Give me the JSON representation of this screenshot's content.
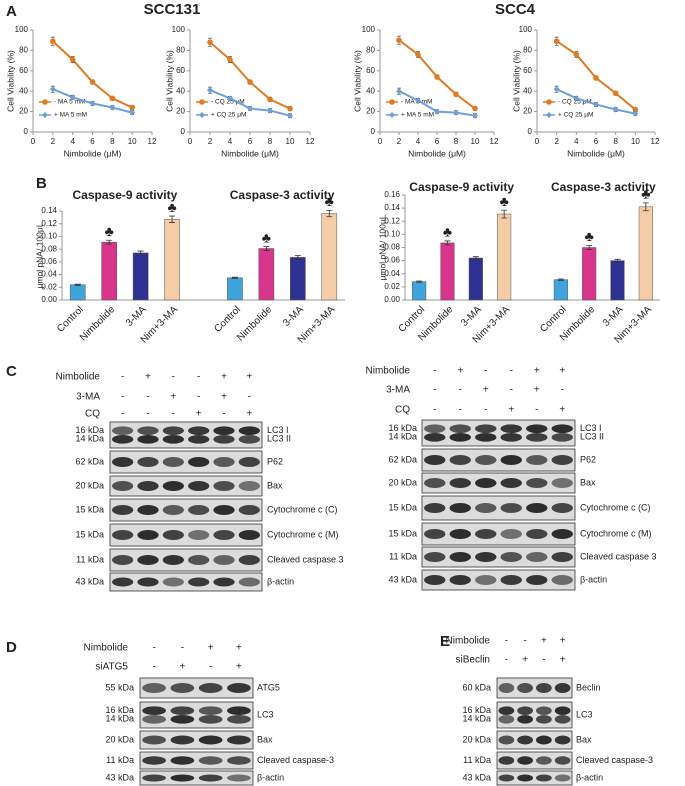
{
  "panel_labels": [
    "A",
    "B",
    "C",
    "D",
    "E"
  ],
  "cell_lines": [
    "SCC131",
    "SCC4"
  ],
  "chart_data": [
    {
      "type": "line",
      "ylabel": "Cell Viability (%)",
      "xlabel": "Nimbolide (μM)",
      "x": [
        2,
        4,
        6,
        8,
        10
      ],
      "xlim": [
        0,
        12
      ],
      "xticks": [
        0,
        2,
        4,
        6,
        8,
        10,
        12
      ],
      "ylim": [
        0,
        100
      ],
      "yticks": [
        0,
        20,
        40,
        60,
        80,
        100
      ],
      "legend": "lower left",
      "series": [
        {
          "name": "- MA 5 mM",
          "color": "#e07b22",
          "values": [
            89,
            71,
            49,
            33,
            24
          ],
          "errors": [
            4,
            3,
            2,
            2,
            2
          ]
        },
        {
          "name": "+ MA 5 mM",
          "color": "#6f9fd8",
          "values": [
            42,
            34,
            28,
            24,
            19
          ],
          "errors": [
            3,
            2,
            2,
            2,
            2
          ]
        }
      ]
    },
    {
      "type": "line",
      "ylabel": "Cell Viability (%)",
      "xlabel": "Nimbolide (μM)",
      "x": [
        2,
        4,
        6,
        8,
        10
      ],
      "xlim": [
        0,
        12
      ],
      "xticks": [
        0,
        2,
        4,
        6,
        8,
        10,
        12
      ],
      "ylim": [
        0,
        100
      ],
      "yticks": [
        0,
        20,
        40,
        60,
        80,
        100
      ],
      "legend": "lower left",
      "series": [
        {
          "name": "- CQ 25 μM",
          "color": "#e07b22",
          "values": [
            88,
            71,
            49,
            32,
            23
          ],
          "errors": [
            4,
            3,
            2,
            2,
            2
          ]
        },
        {
          "name": "+ CQ 25 μM",
          "color": "#6f9fd8",
          "values": [
            41,
            33,
            23,
            21,
            16
          ],
          "errors": [
            3,
            2,
            2,
            2,
            2
          ]
        }
      ]
    },
    {
      "type": "line",
      "ylabel": "Cell Viability (%)",
      "xlabel": "Nimbolide (μM)",
      "x": [
        2,
        4,
        6,
        8,
        10
      ],
      "xlim": [
        0,
        12
      ],
      "xticks": [
        0,
        2,
        4,
        6,
        8,
        10,
        12
      ],
      "ylim": [
        0,
        100
      ],
      "yticks": [
        0,
        20,
        40,
        60,
        80,
        100
      ],
      "legend": "lower left",
      "series": [
        {
          "name": "- MA 5 mM",
          "color": "#e07b22",
          "values": [
            90,
            76,
            54,
            37,
            23
          ],
          "errors": [
            4,
            3,
            2,
            2,
            2
          ]
        },
        {
          "name": "+ MA 5 mM",
          "color": "#6f9fd8",
          "values": [
            40,
            31,
            20,
            19,
            16
          ],
          "errors": [
            3,
            2,
            2,
            2,
            2
          ]
        }
      ]
    },
    {
      "type": "line",
      "ylabel": "Cell Viability (%)",
      "xlabel": "Nimbolide (μM)",
      "x": [
        2,
        4,
        6,
        8,
        10
      ],
      "xlim": [
        0,
        12
      ],
      "xticks": [
        0,
        2,
        4,
        6,
        8,
        10,
        12
      ],
      "ylim": [
        0,
        100
      ],
      "yticks": [
        0,
        20,
        40,
        60,
        80,
        100
      ],
      "legend": "lower left",
      "series": [
        {
          "name": "- CQ 25 μM",
          "color": "#e07b22",
          "values": [
            89,
            76,
            53,
            38,
            22
          ],
          "errors": [
            4,
            3,
            2,
            2,
            2
          ]
        },
        {
          "name": "+ CQ 25 μM",
          "color": "#6f9fd8",
          "values": [
            42,
            33,
            27,
            22,
            18
          ],
          "errors": [
            3,
            2,
            2,
            2,
            2
          ]
        }
      ]
    },
    {
      "type": "bar",
      "ylabel": "μmol pNA/ 100μL",
      "ylim": [
        0,
        0.14
      ],
      "yticks": [
        {
          "value": 0,
          "label": "0.00"
        },
        {
          "value": 0.02,
          "label": "0.02"
        },
        {
          "value": 0.04,
          "label": "0.04"
        },
        {
          "value": 0.06,
          "label": "0.06"
        },
        {
          "value": 0.08,
          "label": "0.08"
        },
        {
          "value": 0.1,
          "label": "0.10"
        },
        {
          "value": 0.12,
          "label": "0.12"
        },
        {
          "value": 0.14,
          "label": "0.14"
        }
      ],
      "colors": [
        "#3fa3dc",
        "#d8358c",
        "#2e3192",
        "#f4cda6"
      ],
      "groups": [
        {
          "title": "Caspase-9 activity",
          "categories": [
            "Control",
            "Nimbolide",
            "3-MA",
            "Nim+3-MA"
          ],
          "values": [
            0.024,
            0.091,
            0.074,
            0.127
          ],
          "errors": [
            0.001,
            0.003,
            0.003,
            0.005
          ],
          "annotations": [
            null,
            "♣",
            null,
            "♣"
          ]
        },
        {
          "title": "Caspase-3 activity",
          "categories": [
            "Control",
            "Nimbolide",
            "3-MA",
            "Nim+3-MA"
          ],
          "values": [
            0.035,
            0.081,
            0.067,
            0.136
          ],
          "errors": [
            0.001,
            0.003,
            0.003,
            0.005
          ],
          "annotations": [
            null,
            "♣",
            null,
            "♣"
          ]
        }
      ]
    },
    {
      "type": "bar",
      "ylabel": "μmol pNA/ 100μL",
      "ylim": [
        0,
        0.16
      ],
      "yticks": [
        {
          "value": 0,
          "label": "0.00"
        },
        {
          "value": 0.02,
          "label": "0.02"
        },
        {
          "value": 0.04,
          "label": "0.04"
        },
        {
          "value": 0.06,
          "label": "0.06"
        },
        {
          "value": 0.08,
          "label": "0.08"
        },
        {
          "value": 0.1,
          "label": "0.10"
        },
        {
          "value": 0.12,
          "label": "0.12"
        },
        {
          "value": 0.14,
          "label": "0.14"
        },
        {
          "value": 0.16,
          "label": "0.16"
        }
      ],
      "colors": [
        "#3fa3dc",
        "#d8358c",
        "#2e3192",
        "#f4cda6"
      ],
      "groups": [
        {
          "title": "Caspase-9 activity",
          "categories": [
            "Control",
            "Nimbolide",
            "3-MA",
            "Nim+3-MA"
          ],
          "values": [
            0.028,
            0.087,
            0.064,
            0.131
          ],
          "errors": [
            0.001,
            0.003,
            0.002,
            0.006
          ],
          "annotations": [
            null,
            "♣",
            null,
            "♣"
          ]
        },
        {
          "title": "Caspase-3 activity",
          "categories": [
            "Control",
            "Nimbolide",
            "3-MA",
            "Nim+3-MA"
          ],
          "values": [
            0.031,
            0.08,
            0.06,
            0.142
          ],
          "errors": [
            0.001,
            0.003,
            0.002,
            0.006
          ],
          "annotations": [
            null,
            "♣",
            null,
            "♣"
          ]
        }
      ]
    }
  ],
  "blots": [
    {
      "treatments": [
        {
          "name": "Nimbolide",
          "signs": [
            "-",
            "+",
            "-",
            "-",
            "+",
            "+"
          ]
        },
        {
          "name": "3-MA",
          "signs": [
            "-",
            "-",
            "+",
            "-",
            "+",
            "-"
          ]
        },
        {
          "name": "CQ",
          "signs": [
            "-",
            "-",
            "-",
            "+",
            "-",
            "+"
          ]
        }
      ],
      "rows": [
        {
          "kda": [
            "16 kDa",
            "14 kDa"
          ],
          "proteins": [
            "LC3 I",
            "LC3 II"
          ]
        },
        {
          "kda": [
            "62 kDa"
          ],
          "proteins": [
            "P62"
          ]
        },
        {
          "kda": [
            "20 kDa"
          ],
          "proteins": [
            "Bax"
          ]
        },
        {
          "kda": [
            "15 kDa"
          ],
          "proteins": [
            "Cytochrome c (C)"
          ]
        },
        {
          "kda": [
            "15 kDa"
          ],
          "proteins": [
            "Cytochrome c (M)"
          ]
        },
        {
          "kda": [
            "11 kDa"
          ],
          "proteins": [
            "Cleaved caspase 3"
          ]
        },
        {
          "kda": [
            "43 kDa"
          ],
          "proteins": [
            "β-actin"
          ]
        }
      ]
    },
    {
      "treatments": [
        {
          "name": "Nimbolide",
          "signs": [
            "-",
            "+",
            "-",
            "-",
            "+",
            "+"
          ]
        },
        {
          "name": "3-MA",
          "signs": [
            "-",
            "-",
            "+",
            "-",
            "+",
            "-"
          ]
        },
        {
          "name": "CQ",
          "signs": [
            "-",
            "-",
            "-",
            "+",
            "-",
            "+"
          ]
        }
      ],
      "rows": [
        {
          "kda": [
            "16 kDa",
            "14 kDa"
          ],
          "proteins": [
            "LC3 I",
            "LC3 II"
          ]
        },
        {
          "kda": [
            "62 kDa"
          ],
          "proteins": [
            "P62"
          ]
        },
        {
          "kda": [
            "20 kDa"
          ],
          "proteins": [
            "Bax"
          ]
        },
        {
          "kda": [
            "15 kDa"
          ],
          "proteins": [
            "Cytochrome c (C)"
          ]
        },
        {
          "kda": [
            "15 kDa"
          ],
          "proteins": [
            "Cytochrome c (M)"
          ]
        },
        {
          "kda": [
            "11 kDa"
          ],
          "proteins": [
            "Cleaved caspase 3"
          ]
        },
        {
          "kda": [
            "43 kDa"
          ],
          "proteins": [
            "β-actin"
          ]
        }
      ]
    },
    {
      "treatments": [
        {
          "name": "Nimbolide",
          "signs": [
            "-",
            "-",
            "+",
            "+"
          ]
        },
        {
          "name": "siATG5",
          "signs": [
            "-",
            "+",
            "-",
            "+"
          ]
        }
      ],
      "rows": [
        {
          "kda": [
            "55 kDa"
          ],
          "proteins": [
            "ATG5"
          ]
        },
        {
          "kda": [
            "16 kDa",
            "14 kDa"
          ],
          "proteins": [
            "LC3"
          ]
        },
        {
          "kda": [
            "20 kDa"
          ],
          "proteins": [
            "Bax"
          ]
        },
        {
          "kda": [
            "11 kDa"
          ],
          "proteins": [
            "Cleaved caspase-3"
          ]
        },
        {
          "kda": [
            "43 kDa"
          ],
          "proteins": [
            "β-actin"
          ]
        }
      ]
    },
    {
      "treatments": [
        {
          "name": "Nimbolide",
          "signs": [
            "-",
            "-",
            "+",
            "+"
          ]
        },
        {
          "name": "siBeclin",
          "signs": [
            "-",
            "+",
            "-",
            "+"
          ]
        }
      ],
      "rows": [
        {
          "kda": [
            "60 kDa"
          ],
          "proteins": [
            "Beclin"
          ]
        },
        {
          "kda": [
            "16 kDa",
            "14 kDa"
          ],
          "proteins": [
            "LC3"
          ]
        },
        {
          "kda": [
            "20 kDa"
          ],
          "proteins": [
            "Bax"
          ]
        },
        {
          "kda": [
            "11 kDa"
          ],
          "proteins": [
            "Cleaved caspase-3"
          ]
        },
        {
          "kda": [
            "43 kDa"
          ],
          "proteins": [
            "β-actin"
          ]
        }
      ]
    }
  ]
}
